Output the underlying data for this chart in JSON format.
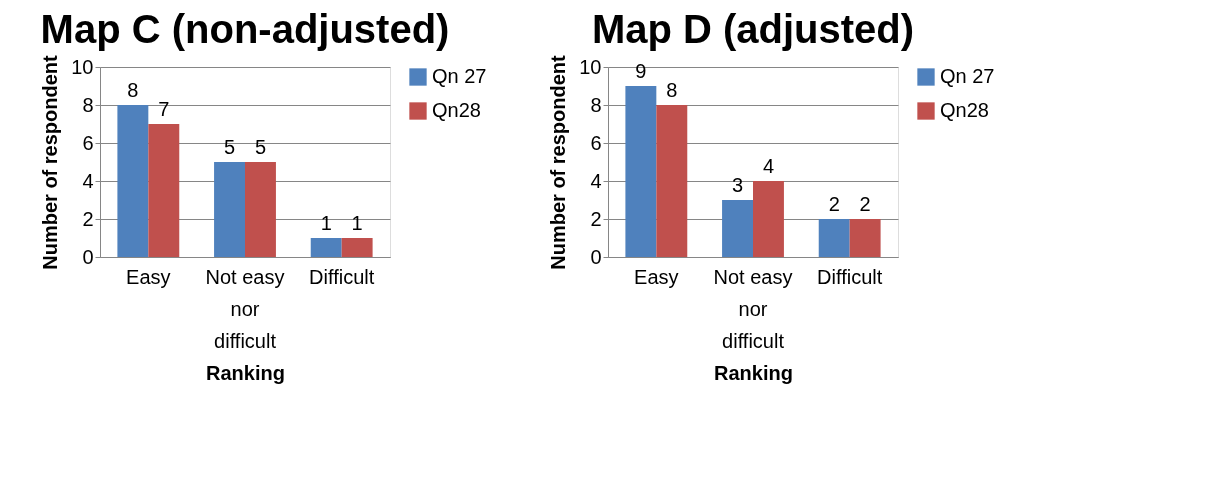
{
  "chart_data": [
    {
      "type": "bar",
      "title": "Map C (non-adjusted)",
      "xlabel": "Ranking",
      "ylabel": "Number of respondent",
      "categories": [
        "Easy",
        "Not easy nor difficult",
        "Difficult"
      ],
      "series": [
        {
          "name": "Qn 27",
          "color": "#4f81bd",
          "values": [
            8,
            5,
            1
          ]
        },
        {
          "name": "Qn28",
          "color": "#c0504d",
          "values": [
            7,
            5,
            1
          ]
        }
      ],
      "ylim": [
        0,
        10
      ],
      "yticks": [
        0,
        2,
        4,
        6,
        8,
        10
      ],
      "grid": "y",
      "legend": "right",
      "data_labels": true
    },
    {
      "type": "bar",
      "title": "Map D (adjusted)",
      "xlabel": "Ranking",
      "ylabel": "Number of respondent",
      "categories": [
        "Easy",
        "Not easy nor difficult",
        "Difficult"
      ],
      "series": [
        {
          "name": "Qn 27",
          "color": "#4f81bd",
          "values": [
            9,
            3,
            2
          ]
        },
        {
          "name": "Qn28",
          "color": "#c0504d",
          "values": [
            8,
            4,
            2
          ]
        }
      ],
      "ylim": [
        0,
        10
      ],
      "yticks": [
        0,
        2,
        4,
        6,
        8,
        10
      ],
      "grid": "y",
      "legend": "right",
      "data_labels": true
    }
  ]
}
